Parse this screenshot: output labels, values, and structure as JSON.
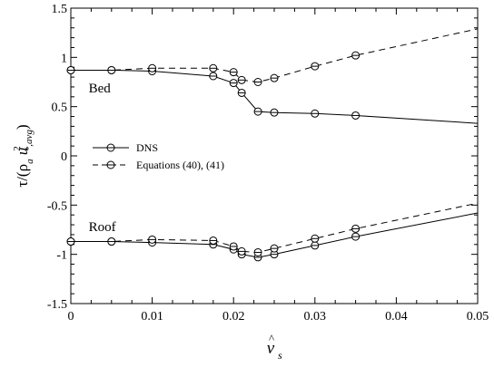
{
  "chart_data": {
    "type": "line",
    "title": "",
    "xlabel": "v̂s",
    "xlabel_base": "v",
    "xlabel_hat": "^",
    "xlabel_sub": "s",
    "ylabel": "τ/(ρa u²*,avg)",
    "xlim": [
      0,
      0.05
    ],
    "ylim": [
      -1.5,
      1.5
    ],
    "x_ticks": [
      0,
      0.01,
      0.02,
      0.03,
      0.04,
      0.05
    ],
    "x_tick_labels": [
      "0",
      "0.01",
      "0.02",
      "0.03",
      "0.04",
      "0.05"
    ],
    "y_ticks": [
      -1.5,
      -1,
      -0.5,
      0,
      0.5,
      1,
      1.5
    ],
    "y_tick_labels": [
      "-1.5",
      "-1",
      "-0.5",
      "0",
      "0.5",
      "1",
      "1.5"
    ],
    "grid": false,
    "legend": {
      "placement": "center-left",
      "entries": [
        "DNS",
        "Equations (40), (41)"
      ]
    },
    "annotations": [
      {
        "text": "Bed",
        "x": 0.0013,
        "y": 0.69
      },
      {
        "text": "Roof",
        "x": 0.0013,
        "y": -0.72
      }
    ],
    "series": [
      {
        "name": "DNS",
        "group": "bed",
        "style": "solid",
        "x": [
          0,
          0.005,
          0.01,
          0.0175,
          0.02,
          0.021,
          0.023,
          0.025,
          0.03,
          0.035,
          0.05
        ],
        "y": [
          0.87,
          0.87,
          0.86,
          0.81,
          0.74,
          0.64,
          0.45,
          0.44,
          0.43,
          0.41,
          0.33
        ],
        "marker_x": [
          0,
          0.005,
          0.01,
          0.0175,
          0.02,
          0.021,
          0.023,
          0.025,
          0.03,
          0.035
        ]
      },
      {
        "name": "Equations (40), (41)",
        "group": "bed",
        "style": "dashed",
        "x": [
          0,
          0.005,
          0.01,
          0.0175,
          0.02,
          0.021,
          0.023,
          0.025,
          0.03,
          0.035,
          0.05
        ],
        "y": [
          0.87,
          0.87,
          0.89,
          0.89,
          0.85,
          0.77,
          0.75,
          0.79,
          0.91,
          1.02,
          1.29
        ],
        "marker_x": [
          0,
          0.005,
          0.01,
          0.0175,
          0.02,
          0.021,
          0.023,
          0.025,
          0.03,
          0.035
        ]
      },
      {
        "name": "DNS",
        "group": "roof",
        "style": "solid",
        "x": [
          0,
          0.005,
          0.01,
          0.0175,
          0.02,
          0.021,
          0.023,
          0.025,
          0.03,
          0.035,
          0.05
        ],
        "y": [
          -0.87,
          -0.87,
          -0.88,
          -0.9,
          -0.95,
          -1.0,
          -1.03,
          -1.0,
          -0.91,
          -0.82,
          -0.58
        ],
        "marker_x": [
          0,
          0.005,
          0.01,
          0.0175,
          0.02,
          0.021,
          0.023,
          0.025,
          0.03,
          0.035
        ]
      },
      {
        "name": "Equations (40), (41)",
        "group": "roof",
        "style": "dashed",
        "x": [
          0,
          0.005,
          0.01,
          0.0175,
          0.02,
          0.021,
          0.023,
          0.025,
          0.03,
          0.035,
          0.05
        ],
        "y": [
          -0.87,
          -0.87,
          -0.85,
          -0.86,
          -0.92,
          -0.97,
          -0.98,
          -0.94,
          -0.84,
          -0.74,
          -0.48
        ],
        "marker_x": [
          0,
          0.005,
          0.01,
          0.0175,
          0.02,
          0.021,
          0.023,
          0.025,
          0.03,
          0.035
        ]
      }
    ]
  }
}
